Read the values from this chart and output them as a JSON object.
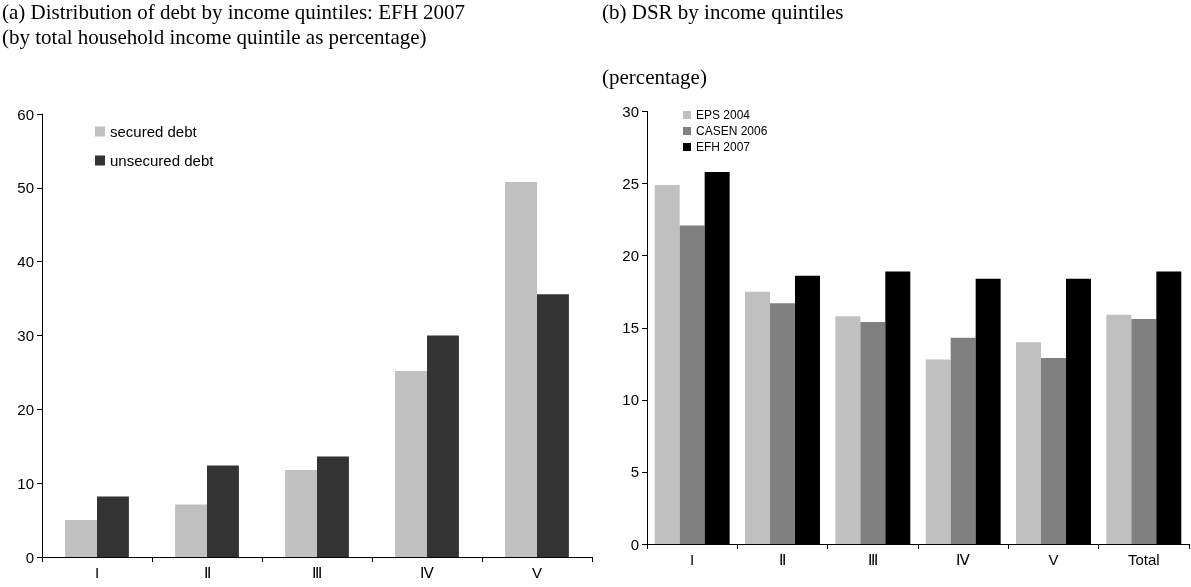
{
  "chart_data": [
    {
      "type": "bar",
      "title": "(a) Distribution of debt by income quintiles: EFH 2007",
      "subtitle": "(by total household income quintile as percentage)",
      "categories": [
        "I",
        "Ⅱ",
        "Ⅲ",
        "Ⅳ",
        "V"
      ],
      "series": [
        {
          "name": "secured debt",
          "color": "#c0c0c0",
          "values": [
            5.0,
            7.1,
            11.8,
            25.2,
            50.8
          ]
        },
        {
          "name": "unsecured debt",
          "color": "#333333",
          "values": [
            8.2,
            12.4,
            13.6,
            30.0,
            35.6
          ]
        }
      ],
      "ylim": [
        0,
        60
      ],
      "yticks": [
        0,
        10,
        20,
        30,
        40,
        50,
        60
      ],
      "grid": false,
      "legend": "top left"
    },
    {
      "type": "bar",
      "title": "(b) DSR by income quintiles",
      "subtitle": "(percentage)",
      "categories": [
        "I",
        "Ⅱ",
        "Ⅲ",
        "Ⅳ",
        "V",
        "Total"
      ],
      "series": [
        {
          "name": "EPS 2004",
          "color": "#c0c0c0",
          "values": [
            24.9,
            17.5,
            15.8,
            12.8,
            14.0,
            15.9
          ]
        },
        {
          "name": "CASEN 2006",
          "color": "#808080",
          "values": [
            22.1,
            16.7,
            15.4,
            14.3,
            12.9,
            15.6
          ]
        },
        {
          "name": "EFH 2007",
          "color": "#000000",
          "values": [
            25.8,
            18.6,
            18.9,
            18.4,
            18.4,
            18.9
          ]
        }
      ],
      "ylim": [
        0,
        30
      ],
      "yticks": [
        0,
        5,
        10,
        15,
        20,
        25,
        30
      ],
      "grid": false,
      "legend": "top left"
    }
  ]
}
